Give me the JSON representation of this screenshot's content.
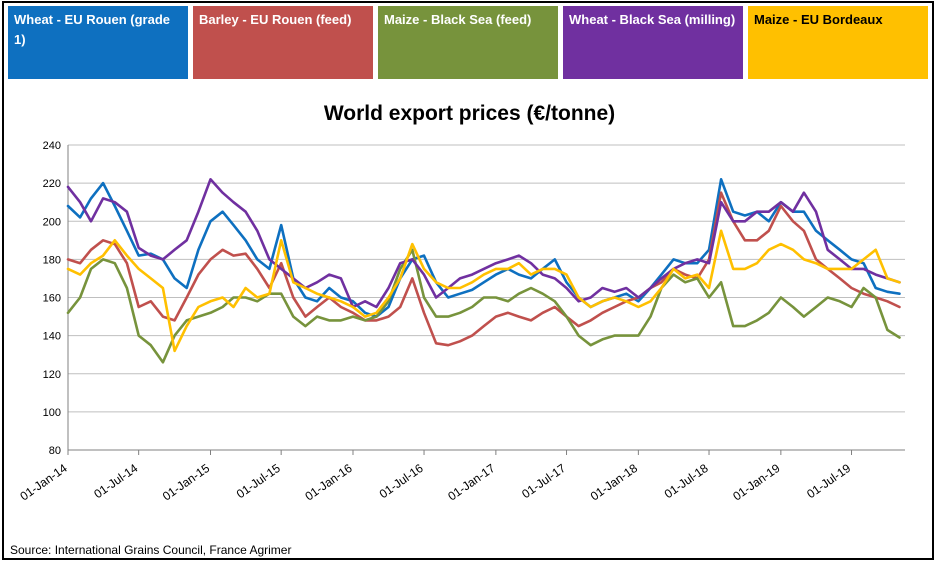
{
  "legend": [
    {
      "label": "Wheat - EU Rouen (grade 1)",
      "color": "#0E70C0"
    },
    {
      "label": "Barley - EU Rouen (feed)",
      "color": "#C0504D"
    },
    {
      "label": "Maize - Black Sea (feed)",
      "color": "#77933C"
    },
    {
      "label": "Wheat - Black Sea (milling)",
      "color": "#7030A0"
    },
    {
      "label": "Maize - EU Bordeaux",
      "color": "#FFC000"
    }
  ],
  "source": "Source: International Grains Council, France Agrimer",
  "chart_data": {
    "type": "line",
    "title": "World export prices (€/tonne)",
    "xlabel": "",
    "ylabel": "",
    "ylim": [
      80,
      240
    ],
    "yticks": [
      80,
      100,
      120,
      140,
      160,
      180,
      200,
      220,
      240
    ],
    "xlim": [
      "2014-01-01",
      "2019-11-15"
    ],
    "xticks": [
      "01-Jan-14",
      "01-Jul-14",
      "01-Jan-15",
      "01-Jul-15",
      "01-Jan-16",
      "01-Jul-16",
      "01-Jan-17",
      "01-Jul-17",
      "01-Jan-18",
      "01-Jul-18",
      "01-Jan-19",
      "01-Jul-19"
    ],
    "grid": "horizontal",
    "series": [
      {
        "name": "Wheat - EU Rouen (grade 1)",
        "color": "#0E70C0",
        "x": [
          "2014-01-01",
          "2014-02-01",
          "2014-03-01",
          "2014-04-01",
          "2014-05-01",
          "2014-06-01",
          "2014-07-01",
          "2014-08-01",
          "2014-09-01",
          "2014-10-01",
          "2014-11-01",
          "2014-12-01",
          "2015-01-01",
          "2015-02-01",
          "2015-03-01",
          "2015-04-01",
          "2015-05-01",
          "2015-06-01",
          "2015-07-01",
          "2015-08-01",
          "2015-09-01",
          "2015-10-01",
          "2015-11-01",
          "2015-12-01",
          "2016-01-01",
          "2016-02-01",
          "2016-03-01",
          "2016-04-01",
          "2016-05-01",
          "2016-06-01",
          "2016-07-01",
          "2016-08-01",
          "2016-09-01",
          "2016-10-01",
          "2016-11-01",
          "2016-12-01",
          "2017-01-01",
          "2017-02-01",
          "2017-03-01",
          "2017-04-01",
          "2017-05-01",
          "2017-06-01",
          "2017-07-01",
          "2017-08-01",
          "2017-09-01",
          "2017-10-01",
          "2017-11-01",
          "2017-12-01",
          "2018-01-01",
          "2018-02-01",
          "2018-03-01",
          "2018-04-01",
          "2018-05-01",
          "2018-06-01",
          "2018-07-01",
          "2018-08-01",
          "2018-09-01",
          "2018-10-01",
          "2018-11-01",
          "2018-12-01",
          "2019-01-01",
          "2019-02-01",
          "2019-03-01",
          "2019-04-01",
          "2019-05-01",
          "2019-06-01",
          "2019-07-01",
          "2019-08-01",
          "2019-09-01",
          "2019-10-01",
          "2019-11-01"
        ],
        "y": [
          208,
          202,
          212,
          220,
          208,
          195,
          182,
          183,
          180,
          170,
          165,
          185,
          200,
          205,
          198,
          190,
          180,
          175,
          198,
          170,
          160,
          158,
          165,
          160,
          158,
          152,
          150,
          155,
          170,
          180,
          182,
          168,
          160,
          162,
          164,
          168,
          172,
          175,
          172,
          170,
          175,
          180,
          168,
          160,
          155,
          158,
          160,
          162,
          158,
          165,
          172,
          180,
          178,
          178,
          185,
          222,
          205,
          203,
          205,
          200,
          210,
          205,
          205,
          195,
          190,
          185,
          180,
          178,
          165,
          163,
          162
        ]
      },
      {
        "name": "Barley - EU Rouen (feed)",
        "color": "#C0504D",
        "x": [
          "2014-01-01",
          "2014-02-01",
          "2014-03-01",
          "2014-04-01",
          "2014-05-01",
          "2014-06-01",
          "2014-07-01",
          "2014-08-01",
          "2014-09-01",
          "2014-10-01",
          "2014-11-01",
          "2014-12-01",
          "2015-01-01",
          "2015-02-01",
          "2015-03-01",
          "2015-04-01",
          "2015-05-01",
          "2015-06-01",
          "2015-07-01",
          "2015-08-01",
          "2015-09-01",
          "2015-10-01",
          "2015-11-01",
          "2015-12-01",
          "2016-01-01",
          "2016-02-01",
          "2016-03-01",
          "2016-04-01",
          "2016-05-01",
          "2016-06-01",
          "2016-07-01",
          "2016-08-01",
          "2016-09-01",
          "2016-10-01",
          "2016-11-01",
          "2016-12-01",
          "2017-01-01",
          "2017-02-01",
          "2017-03-01",
          "2017-04-01",
          "2017-05-01",
          "2017-06-01",
          "2017-07-01",
          "2017-08-01",
          "2017-09-01",
          "2017-10-01",
          "2017-11-01",
          "2017-12-01",
          "2018-01-01",
          "2018-02-01",
          "2018-03-01",
          "2018-04-01",
          "2018-05-01",
          "2018-06-01",
          "2018-07-01",
          "2018-08-01",
          "2018-09-01",
          "2018-10-01",
          "2018-11-01",
          "2018-12-01",
          "2019-01-01",
          "2019-02-01",
          "2019-03-01",
          "2019-04-01",
          "2019-05-01",
          "2019-06-01",
          "2019-07-01",
          "2019-08-01",
          "2019-09-01",
          "2019-10-01",
          "2019-11-01"
        ],
        "y": [
          180,
          178,
          185,
          190,
          188,
          178,
          155,
          158,
          150,
          148,
          160,
          172,
          180,
          185,
          182,
          183,
          175,
          165,
          178,
          160,
          150,
          155,
          160,
          155,
          152,
          148,
          148,
          150,
          155,
          170,
          152,
          136,
          135,
          137,
          140,
          145,
          150,
          152,
          150,
          148,
          152,
          155,
          150,
          145,
          148,
          152,
          155,
          158,
          160,
          165,
          168,
          175,
          172,
          170,
          180,
          215,
          200,
          190,
          190,
          195,
          208,
          200,
          195,
          180,
          175,
          170,
          165,
          162,
          160,
          158,
          155
        ]
      },
      {
        "name": "Maize - Black Sea (feed)",
        "color": "#77933C",
        "x": [
          "2014-01-01",
          "2014-02-01",
          "2014-03-01",
          "2014-04-01",
          "2014-05-01",
          "2014-06-01",
          "2014-07-01",
          "2014-08-01",
          "2014-09-01",
          "2014-10-01",
          "2014-11-01",
          "2014-12-01",
          "2015-01-01",
          "2015-02-01",
          "2015-03-01",
          "2015-04-01",
          "2015-05-01",
          "2015-06-01",
          "2015-07-01",
          "2015-08-01",
          "2015-09-01",
          "2015-10-01",
          "2015-11-01",
          "2015-12-01",
          "2016-01-01",
          "2016-02-01",
          "2016-03-01",
          "2016-04-01",
          "2016-05-01",
          "2016-06-01",
          "2016-07-01",
          "2016-08-01",
          "2016-09-01",
          "2016-10-01",
          "2016-11-01",
          "2016-12-01",
          "2017-01-01",
          "2017-02-01",
          "2017-03-01",
          "2017-04-01",
          "2017-05-01",
          "2017-06-01",
          "2017-07-01",
          "2017-08-01",
          "2017-09-01",
          "2017-10-01",
          "2017-11-01",
          "2017-12-01",
          "2018-01-01",
          "2018-02-01",
          "2018-03-01",
          "2018-04-01",
          "2018-05-01",
          "2018-06-01",
          "2018-07-01",
          "2018-08-01",
          "2018-09-01",
          "2018-10-01",
          "2018-11-01",
          "2018-12-01",
          "2019-01-01",
          "2019-02-01",
          "2019-03-01",
          "2019-04-01",
          "2019-05-01",
          "2019-06-01",
          "2019-07-01",
          "2019-08-01",
          "2019-09-01",
          "2019-10-01",
          "2019-11-01"
        ],
        "y": [
          152,
          160,
          175,
          180,
          178,
          165,
          140,
          135,
          126,
          140,
          148,
          150,
          152,
          155,
          160,
          160,
          158,
          162,
          162,
          150,
          145,
          150,
          148,
          148,
          150,
          148,
          150,
          158,
          175,
          185,
          160,
          150,
          150,
          152,
          155,
          160,
          160,
          158,
          162,
          165,
          162,
          158,
          150,
          140,
          135,
          138,
          140,
          140,
          140,
          150,
          165,
          172,
          168,
          170,
          160,
          168,
          145,
          145,
          148,
          152,
          160,
          155,
          150,
          155,
          160,
          158,
          155,
          165,
          160,
          143,
          139
        ]
      },
      {
        "name": "Wheat - Black Sea (milling)",
        "color": "#7030A0",
        "x": [
          "2014-01-01",
          "2014-02-01",
          "2014-03-01",
          "2014-04-01",
          "2014-05-01",
          "2014-06-01",
          "2014-07-01",
          "2014-08-01",
          "2014-09-01",
          "2014-10-01",
          "2014-11-01",
          "2014-12-01",
          "2015-01-01",
          "2015-02-01",
          "2015-03-01",
          "2015-04-01",
          "2015-05-01",
          "2015-06-01",
          "2015-07-01",
          "2015-08-01",
          "2015-09-01",
          "2015-10-01",
          "2015-11-01",
          "2015-12-01",
          "2016-01-01",
          "2016-02-01",
          "2016-03-01",
          "2016-04-01",
          "2016-05-01",
          "2016-06-01",
          "2016-07-01",
          "2016-08-01",
          "2016-09-01",
          "2016-10-01",
          "2016-11-01",
          "2016-12-01",
          "2017-01-01",
          "2017-02-01",
          "2017-03-01",
          "2017-04-01",
          "2017-05-01",
          "2017-06-01",
          "2017-07-01",
          "2017-08-01",
          "2017-09-01",
          "2017-10-01",
          "2017-11-01",
          "2017-12-01",
          "2018-01-01",
          "2018-02-01",
          "2018-03-01",
          "2018-04-01",
          "2018-05-01",
          "2018-06-01",
          "2018-07-01",
          "2018-08-01",
          "2018-09-01",
          "2018-10-01",
          "2018-11-01",
          "2018-12-01",
          "2019-01-01",
          "2019-02-01",
          "2019-03-01",
          "2019-04-01",
          "2019-05-01",
          "2019-06-01",
          "2019-07-01",
          "2019-08-01",
          "2019-09-01",
          "2019-10-01",
          "2019-11-01"
        ],
        "y": [
          218,
          210,
          200,
          212,
          210,
          205,
          186,
          182,
          180,
          185,
          190,
          205,
          222,
          215,
          210,
          205,
          195,
          180,
          175,
          170,
          165,
          168,
          172,
          170,
          155,
          158,
          155,
          165,
          178,
          180,
          172,
          160,
          165,
          170,
          172,
          175,
          178,
          180,
          182,
          178,
          172,
          170,
          165,
          158,
          160,
          165,
          163,
          165,
          160,
          165,
          170,
          175,
          178,
          180,
          178,
          210,
          200,
          200,
          205,
          205,
          210,
          205,
          215,
          205,
          185,
          180,
          175,
          175,
          172,
          170,
          168
        ]
      },
      {
        "name": "Maize - EU Bordeaux",
        "color": "#FFC000",
        "x": [
          "2014-01-01",
          "2014-02-01",
          "2014-03-01",
          "2014-04-01",
          "2014-05-01",
          "2014-06-01",
          "2014-07-01",
          "2014-08-01",
          "2014-09-01",
          "2014-10-01",
          "2014-11-01",
          "2014-12-01",
          "2015-01-01",
          "2015-02-01",
          "2015-03-01",
          "2015-04-01",
          "2015-05-01",
          "2015-06-01",
          "2015-07-01",
          "2015-08-01",
          "2015-09-01",
          "2015-10-01",
          "2015-11-01",
          "2015-12-01",
          "2016-01-01",
          "2016-02-01",
          "2016-03-01",
          "2016-04-01",
          "2016-05-01",
          "2016-06-01",
          "2016-07-01",
          "2016-08-01",
          "2016-09-01",
          "2016-10-01",
          "2016-11-01",
          "2016-12-01",
          "2017-01-01",
          "2017-02-01",
          "2017-03-01",
          "2017-04-01",
          "2017-05-01",
          "2017-06-01",
          "2017-07-01",
          "2017-08-01",
          "2017-09-01",
          "2017-10-01",
          "2017-11-01",
          "2017-12-01",
          "2018-01-01",
          "2018-02-01",
          "2018-03-01",
          "2018-04-01",
          "2018-05-01",
          "2018-06-01",
          "2018-07-01",
          "2018-08-01",
          "2018-09-01",
          "2018-10-01",
          "2018-11-01",
          "2018-12-01",
          "2019-01-01",
          "2019-02-01",
          "2019-03-01",
          "2019-04-01",
          "2019-05-01",
          "2019-06-01",
          "2019-07-01",
          "2019-08-01",
          "2019-09-01",
          "2019-10-01",
          "2019-11-01"
        ],
        "y": [
          175,
          172,
          178,
          182,
          190,
          182,
          175,
          170,
          165,
          132,
          145,
          155,
          158,
          160,
          155,
          165,
          160,
          162,
          190,
          168,
          165,
          162,
          160,
          158,
          155,
          150,
          152,
          160,
          170,
          188,
          175,
          168,
          165,
          165,
          168,
          172,
          175,
          175,
          178,
          172,
          175,
          175,
          172,
          160,
          155,
          158,
          160,
          158,
          155,
          158,
          165,
          175,
          170,
          172,
          165,
          195,
          175,
          175,
          178,
          185,
          188,
          185,
          180,
          178,
          175,
          175,
          175,
          180,
          185,
          170,
          168
        ]
      }
    ]
  }
}
